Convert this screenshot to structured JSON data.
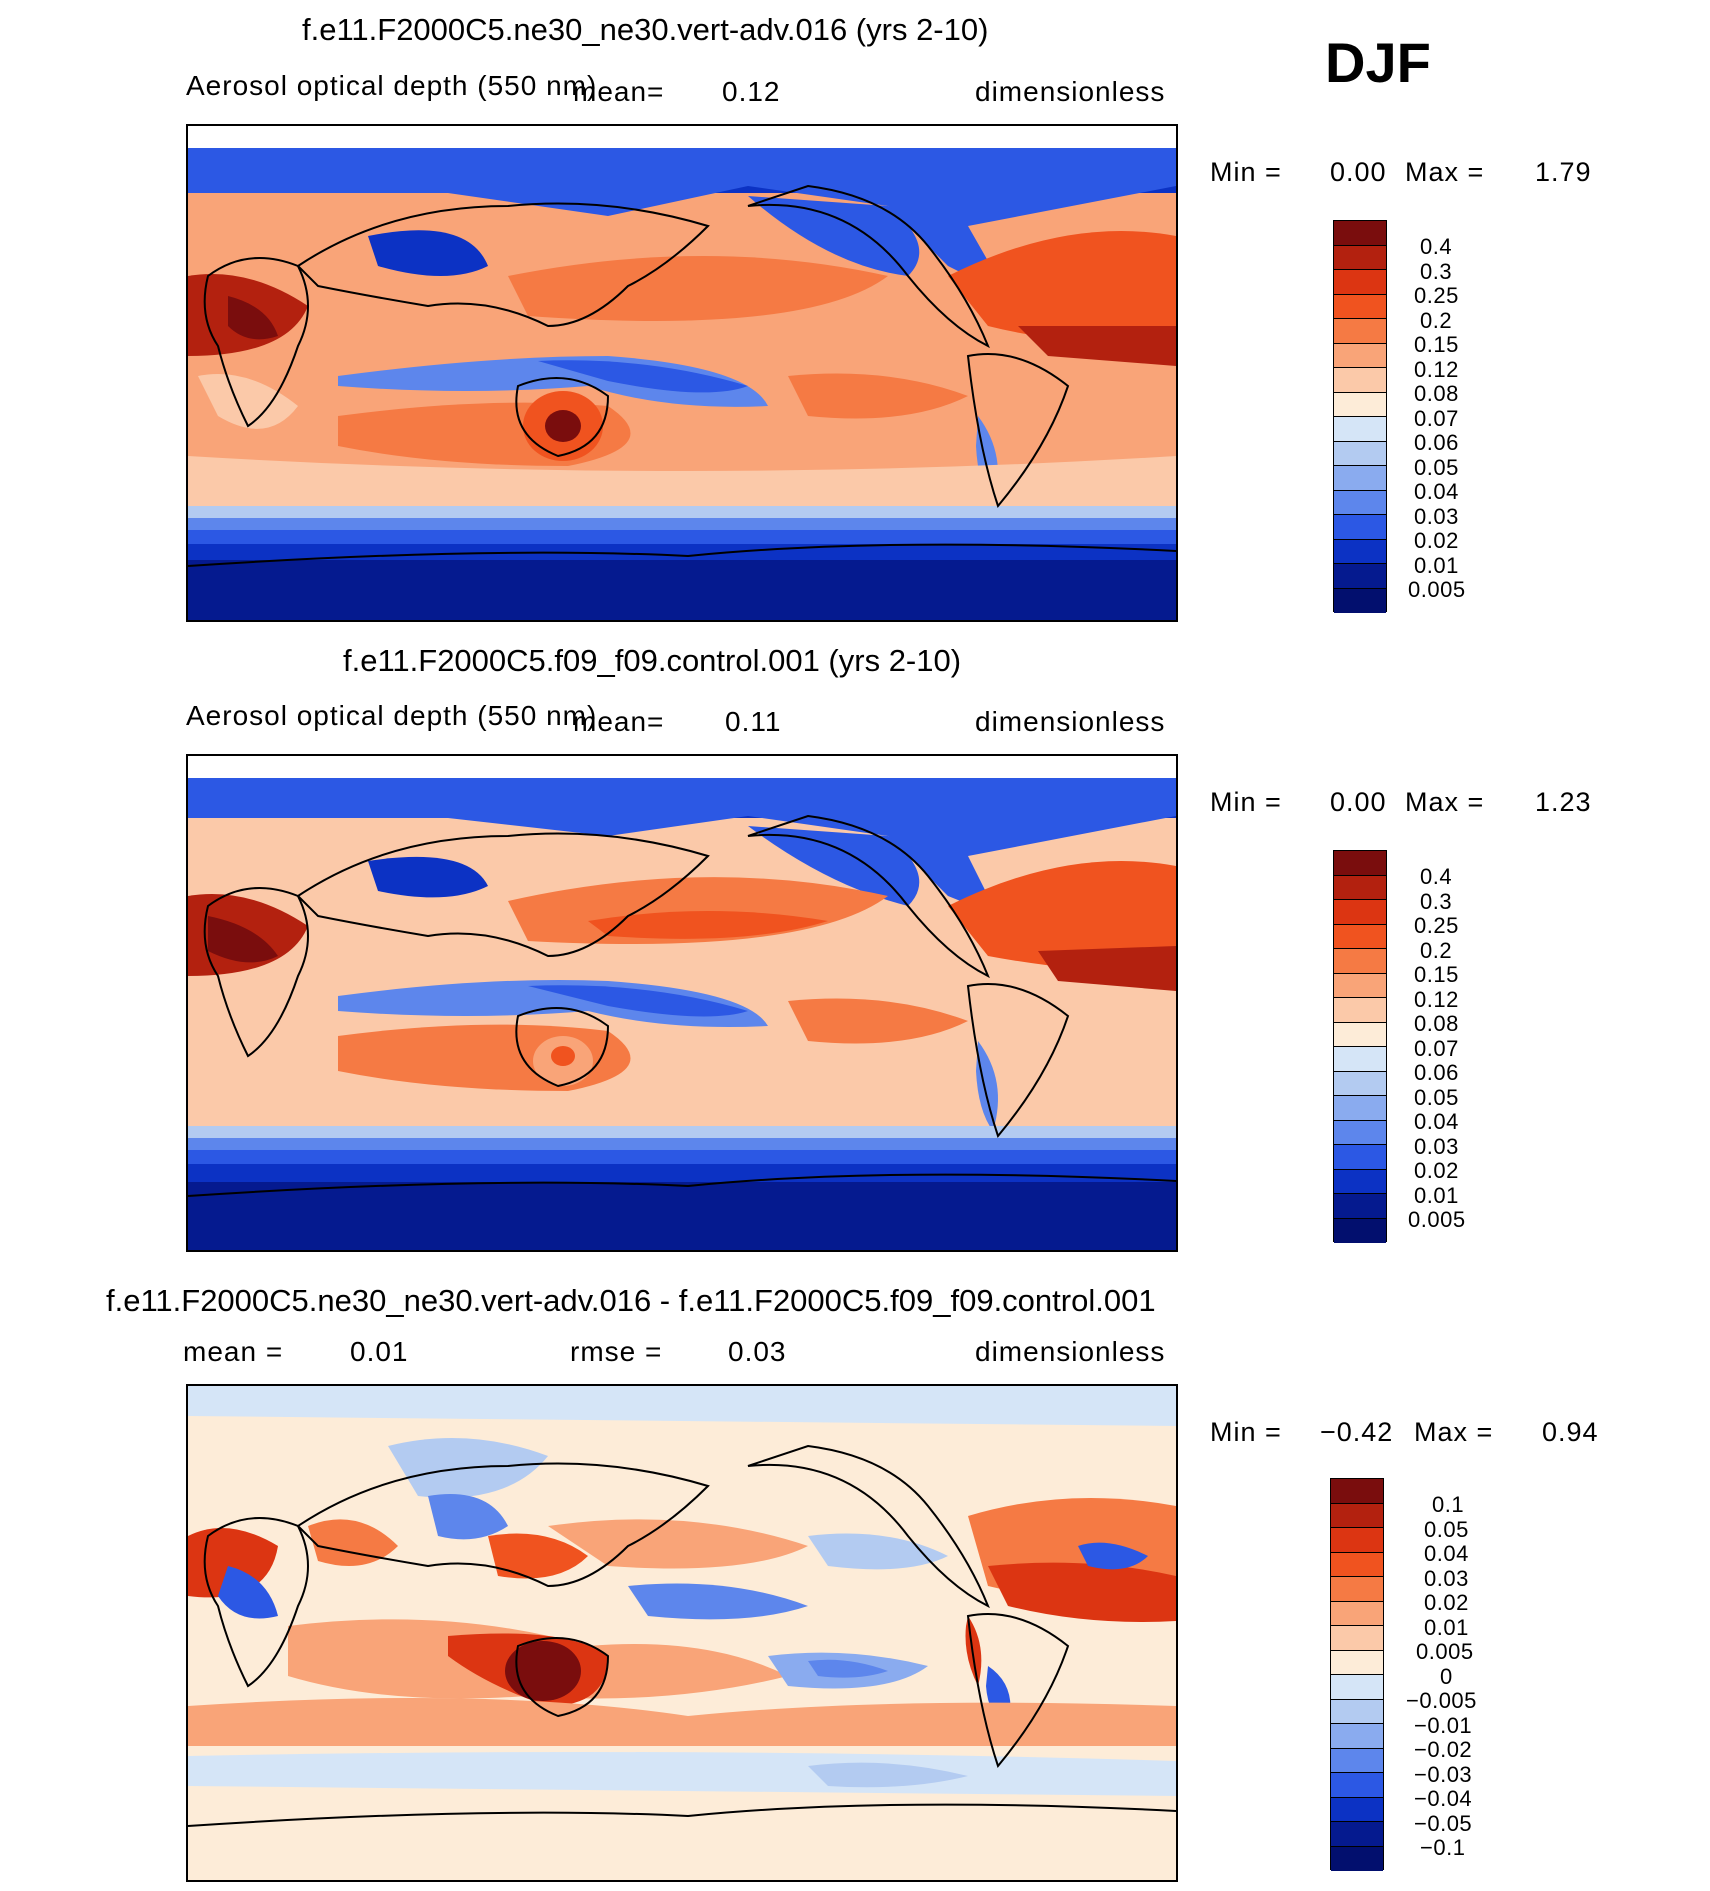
{
  "season": "DJF",
  "panels": [
    {
      "title": "f.e11.F2000C5.ne30_ne30.vert-adv.016 (yrs 2-10)",
      "variable": "Aerosol optical depth (550 nm)",
      "mean_label": "mean=",
      "mean_value": "0.12",
      "units": "dimensionless",
      "min_label": "Min =",
      "min_value": "0.00",
      "max_label": "Max =",
      "max_value": "1.79",
      "colorbar": {
        "labels": [
          "0.4",
          "0.3",
          "0.25",
          "0.2",
          "0.15",
          "0.12",
          "0.08",
          "0.07",
          "0.06",
          "0.05",
          "0.04",
          "0.03",
          "0.02",
          "0.01",
          "0.005"
        ],
        "colors": [
          "#7a0d0d",
          "#b3210f",
          "#dc3512",
          "#f0531f",
          "#f57a44",
          "#f9a478",
          "#fbc9a9",
          "#fdecd8",
          "#d5e5f7",
          "#b3cbf1",
          "#8aabef",
          "#5d86ec",
          "#2c58e4",
          "#0c32c4",
          "#051a8f",
          "#020f6e"
        ]
      }
    },
    {
      "title": "f.e11.F2000C5.f09_f09.control.001 (yrs 2-10)",
      "variable": "Aerosol optical depth (550 nm)",
      "mean_label": "mean=",
      "mean_value": "0.11",
      "units": "dimensionless",
      "min_label": "Min =",
      "min_value": "0.00",
      "max_label": "Max =",
      "max_value": "1.23",
      "colorbar": {
        "labels": [
          "0.4",
          "0.3",
          "0.25",
          "0.2",
          "0.15",
          "0.12",
          "0.08",
          "0.07",
          "0.06",
          "0.05",
          "0.04",
          "0.03",
          "0.02",
          "0.01",
          "0.005"
        ],
        "colors": [
          "#7a0d0d",
          "#b3210f",
          "#dc3512",
          "#f0531f",
          "#f57a44",
          "#f9a478",
          "#fbc9a9",
          "#fdecd8",
          "#d5e5f7",
          "#b3cbf1",
          "#8aabef",
          "#5d86ec",
          "#2c58e4",
          "#0c32c4",
          "#051a8f",
          "#020f6e"
        ]
      }
    },
    {
      "title": "f.e11.F2000C5.ne30_ne30.vert-adv.016 - f.e11.F2000C5.f09_f09.control.001",
      "mean_label": "mean =",
      "mean_value": "0.01",
      "rmse_label": "rmse =",
      "rmse_value": "0.03",
      "units": "dimensionless",
      "min_label": "Min =",
      "min_value": "−0.42",
      "max_label": "Max =",
      "max_value": "0.94",
      "colorbar": {
        "labels": [
          "0.1",
          "0.05",
          "0.04",
          "0.03",
          "0.02",
          "0.01",
          "0.005",
          "0",
          "−0.005",
          "−0.01",
          "−0.02",
          "−0.03",
          "−0.04",
          "−0.05",
          "−0.1"
        ],
        "colors": [
          "#7a0d0d",
          "#b3210f",
          "#dc3512",
          "#f0531f",
          "#f57a44",
          "#f9a478",
          "#fbc9a9",
          "#fdecd8",
          "#d5e5f7",
          "#b3cbf1",
          "#8aabef",
          "#5d86ec",
          "#2c58e4",
          "#0c32c4",
          "#051a8f",
          "#020f6e"
        ]
      }
    }
  ]
}
